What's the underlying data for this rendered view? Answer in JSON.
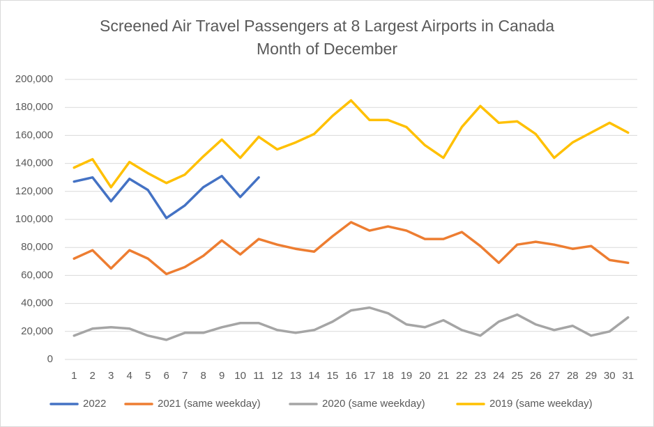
{
  "chart_data": {
    "type": "line",
    "title": "Screened Air Travel Passengers at 8 Largest Airports in Canada",
    "subtitle": "Month of December",
    "categories": [
      "1",
      "2",
      "3",
      "4",
      "5",
      "6",
      "7",
      "8",
      "9",
      "10",
      "11",
      "12",
      "13",
      "14",
      "15",
      "16",
      "17",
      "18",
      "19",
      "20",
      "21",
      "22",
      "23",
      "24",
      "25",
      "26",
      "27",
      "28",
      "29",
      "30",
      "31"
    ],
    "series": [
      {
        "name": "2022",
        "color": "#4472c4",
        "values": [
          127000,
          130000,
          113000,
          129000,
          121000,
          101000,
          110000,
          123000,
          131000,
          116000,
          130000,
          null,
          null,
          null,
          null,
          null,
          null,
          null,
          null,
          null,
          null,
          null,
          null,
          null,
          null,
          null,
          null,
          null,
          null,
          null,
          null
        ]
      },
      {
        "name": "2021 (same weekday)",
        "color": "#ed7d31",
        "values": [
          72000,
          78000,
          65000,
          78000,
          72000,
          61000,
          66000,
          74000,
          85000,
          75000,
          86000,
          82000,
          79000,
          77000,
          88000,
          98000,
          92000,
          95000,
          92000,
          86000,
          86000,
          91000,
          81000,
          69000,
          82000,
          84000,
          82000,
          79000,
          81000,
          71000,
          69000
        ]
      },
      {
        "name": "2020  (same weekday)",
        "color": "#a5a5a5",
        "values": [
          17000,
          22000,
          23000,
          22000,
          17000,
          14000,
          19000,
          19000,
          23000,
          26000,
          26000,
          21000,
          19000,
          21000,
          27000,
          35000,
          37000,
          33000,
          25000,
          23000,
          28000,
          21000,
          17000,
          27000,
          32000,
          25000,
          21000,
          24000,
          17000,
          20000,
          30000
        ]
      },
      {
        "name": "2019 (same weekday)",
        "color": "#ffc000",
        "values": [
          137000,
          143000,
          123000,
          141000,
          133000,
          126000,
          132000,
          145000,
          157000,
          144000,
          159000,
          150000,
          155000,
          161000,
          174000,
          185000,
          171000,
          171000,
          166000,
          153000,
          144000,
          166000,
          181000,
          169000,
          170000,
          161000,
          144000,
          155000,
          162000,
          169000,
          162000
        ]
      }
    ],
    "ylim": [
      0,
      200000
    ],
    "yticks": [
      0,
      {
        "value": 20000,
        "label": "20,000"
      },
      {
        "value": 40000,
        "label": "40,000"
      },
      {
        "value": 60000,
        "label": "60,000"
      },
      {
        "value": 80000,
        "label": "80,000"
      },
      {
        "value": 100000,
        "label": "100,000"
      },
      {
        "value": 120000,
        "label": "120,000"
      },
      {
        "value": 140000,
        "label": "140,000"
      },
      {
        "value": 160000,
        "label": "160,000"
      },
      {
        "value": 180000,
        "label": "180,000"
      },
      {
        "value": 200000,
        "label": "200,000"
      }
    ],
    "grid": true,
    "legend": "bottom"
  }
}
